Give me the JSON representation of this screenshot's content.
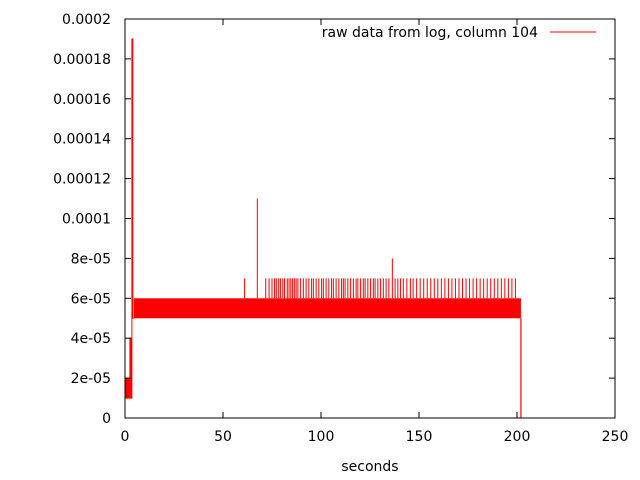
{
  "chart_data": {
    "type": "line",
    "title": "",
    "xlabel": "seconds",
    "ylabel": "",
    "xlim": [
      0,
      250
    ],
    "ylim": [
      0,
      0.0002
    ],
    "x_ticks": [
      {
        "value": 0,
        "label": "0"
      },
      {
        "value": 50,
        "label": "50"
      },
      {
        "value": 100,
        "label": "100"
      },
      {
        "value": 150,
        "label": "150"
      },
      {
        "value": 200,
        "label": "200"
      },
      {
        "value": 250,
        "label": "250"
      }
    ],
    "y_ticks": [
      {
        "value": 0,
        "label": "0"
      },
      {
        "value": 2e-05,
        "label": "2e-05"
      },
      {
        "value": 4e-05,
        "label": "4e-05"
      },
      {
        "value": 6e-05,
        "label": "6e-05"
      },
      {
        "value": 8e-05,
        "label": "8e-05"
      },
      {
        "value": 0.0001,
        "label": "0.0001"
      },
      {
        "value": 0.00012,
        "label": "0.00012"
      },
      {
        "value": 0.00014,
        "label": "0.00014"
      },
      {
        "value": 0.00016,
        "label": "0.00016"
      },
      {
        "value": 0.00018,
        "label": "0.00018"
      },
      {
        "value": 0.0002,
        "label": "0.0002"
      }
    ],
    "grid": false,
    "legend_position": "top-right",
    "series": [
      {
        "name": "raw data from log, column 104",
        "color": "#ff0000",
        "x": [
          0,
          0.5,
          0.5,
          1,
          1,
          1.5,
          1.5,
          2,
          2,
          2.5,
          2.5,
          3,
          3,
          3.5,
          3.5,
          4,
          4,
          4.5
        ],
        "y": [
          1e-05,
          1e-05,
          2e-05,
          2e-05,
          1e-05,
          1e-05,
          2e-05,
          2e-05,
          1e-05,
          1e-05,
          4e-05,
          4e-05,
          1e-05,
          1e-05,
          0.00019,
          0.00019,
          5e-05,
          5e-05
        ],
        "band": {
          "x_start": 4.5,
          "x_end": 202,
          "y_low": 5e-05,
          "y_high": 6e-05
        },
        "drop": {
          "x": 202,
          "y": 0
        },
        "spikes": [
          {
            "x": 61,
            "y": 7e-05
          },
          {
            "x": 67.5,
            "y": 0.00011
          },
          {
            "x": 71.8,
            "y": 7e-05
          },
          {
            "x": 73.5,
            "y": 7e-05
          },
          {
            "x": 75,
            "y": 7e-05
          },
          {
            "x": 76.3,
            "y": 7e-05
          },
          {
            "x": 77.2,
            "y": 7e-05
          },
          {
            "x": 78.4,
            "y": 7e-05
          },
          {
            "x": 79.3,
            "y": 7e-05
          },
          {
            "x": 80.5,
            "y": 7e-05
          },
          {
            "x": 81.4,
            "y": 7e-05
          },
          {
            "x": 82.8,
            "y": 7e-05
          },
          {
            "x": 83.7,
            "y": 7e-05
          },
          {
            "x": 84.6,
            "y": 7e-05
          },
          {
            "x": 85.5,
            "y": 7e-05
          },
          {
            "x": 86.4,
            "y": 7e-05
          },
          {
            "x": 87.3,
            "y": 7e-05
          },
          {
            "x": 88.2,
            "y": 7e-05
          },
          {
            "x": 89.6,
            "y": 7e-05
          },
          {
            "x": 91,
            "y": 7e-05
          },
          {
            "x": 92.4,
            "y": 7e-05
          },
          {
            "x": 93.8,
            "y": 7e-05
          },
          {
            "x": 95.2,
            "y": 7e-05
          },
          {
            "x": 96.1,
            "y": 7e-05
          },
          {
            "x": 97.5,
            "y": 7e-05
          },
          {
            "x": 98.9,
            "y": 7e-05
          },
          {
            "x": 100.3,
            "y": 7e-05
          },
          {
            "x": 101.2,
            "y": 7e-05
          },
          {
            "x": 102.6,
            "y": 7e-05
          },
          {
            "x": 104,
            "y": 7e-05
          },
          {
            "x": 105.4,
            "y": 7e-05
          },
          {
            "x": 106.3,
            "y": 7e-05
          },
          {
            "x": 107.7,
            "y": 7e-05
          },
          {
            "x": 109.1,
            "y": 7e-05
          },
          {
            "x": 110.5,
            "y": 7e-05
          },
          {
            "x": 111.4,
            "y": 7e-05
          },
          {
            "x": 112.3,
            "y": 7e-05
          },
          {
            "x": 113.7,
            "y": 7e-05
          },
          {
            "x": 115.1,
            "y": 7e-05
          },
          {
            "x": 116.5,
            "y": 7e-05
          },
          {
            "x": 117.9,
            "y": 7e-05
          },
          {
            "x": 118.8,
            "y": 7e-05
          },
          {
            "x": 120.2,
            "y": 7e-05
          },
          {
            "x": 121.6,
            "y": 7e-05
          },
          {
            "x": 122.5,
            "y": 7e-05
          },
          {
            "x": 123.9,
            "y": 7e-05
          },
          {
            "x": 125.3,
            "y": 7e-05
          },
          {
            "x": 126.7,
            "y": 7e-05
          },
          {
            "x": 127.6,
            "y": 7e-05
          },
          {
            "x": 129,
            "y": 7e-05
          },
          {
            "x": 130.4,
            "y": 7e-05
          },
          {
            "x": 131.8,
            "y": 7e-05
          },
          {
            "x": 133.2,
            "y": 7e-05
          },
          {
            "x": 134.6,
            "y": 7e-05
          },
          {
            "x": 136.4,
            "y": 8e-05
          },
          {
            "x": 137.8,
            "y": 7e-05
          },
          {
            "x": 139.2,
            "y": 7e-05
          },
          {
            "x": 140.6,
            "y": 7e-05
          },
          {
            "x": 142,
            "y": 7e-05
          },
          {
            "x": 143.8,
            "y": 7e-05
          },
          {
            "x": 145.6,
            "y": 7e-05
          },
          {
            "x": 147,
            "y": 7e-05
          },
          {
            "x": 148.8,
            "y": 7e-05
          },
          {
            "x": 150.6,
            "y": 7e-05
          },
          {
            "x": 152.4,
            "y": 7e-05
          },
          {
            "x": 154.2,
            "y": 7e-05
          },
          {
            "x": 156,
            "y": 7e-05
          },
          {
            "x": 157.8,
            "y": 7e-05
          },
          {
            "x": 159.6,
            "y": 7e-05
          },
          {
            "x": 161.4,
            "y": 7e-05
          },
          {
            "x": 163.2,
            "y": 7e-05
          },
          {
            "x": 165,
            "y": 7e-05
          },
          {
            "x": 166.8,
            "y": 7e-05
          },
          {
            "x": 168.6,
            "y": 7e-05
          },
          {
            "x": 170.4,
            "y": 7e-05
          },
          {
            "x": 172.2,
            "y": 7e-05
          },
          {
            "x": 174,
            "y": 7e-05
          },
          {
            "x": 175.8,
            "y": 7e-05
          },
          {
            "x": 177.6,
            "y": 7e-05
          },
          {
            "x": 179.4,
            "y": 7e-05
          },
          {
            "x": 181.2,
            "y": 7e-05
          },
          {
            "x": 183,
            "y": 7e-05
          },
          {
            "x": 184.8,
            "y": 7e-05
          },
          {
            "x": 186.6,
            "y": 7e-05
          },
          {
            "x": 188.4,
            "y": 7e-05
          },
          {
            "x": 190.2,
            "y": 7e-05
          },
          {
            "x": 192,
            "y": 7e-05
          },
          {
            "x": 193.8,
            "y": 7e-05
          },
          {
            "x": 195.6,
            "y": 7e-05
          },
          {
            "x": 197.4,
            "y": 7e-05
          },
          {
            "x": 199.2,
            "y": 7e-05
          }
        ]
      }
    ]
  }
}
